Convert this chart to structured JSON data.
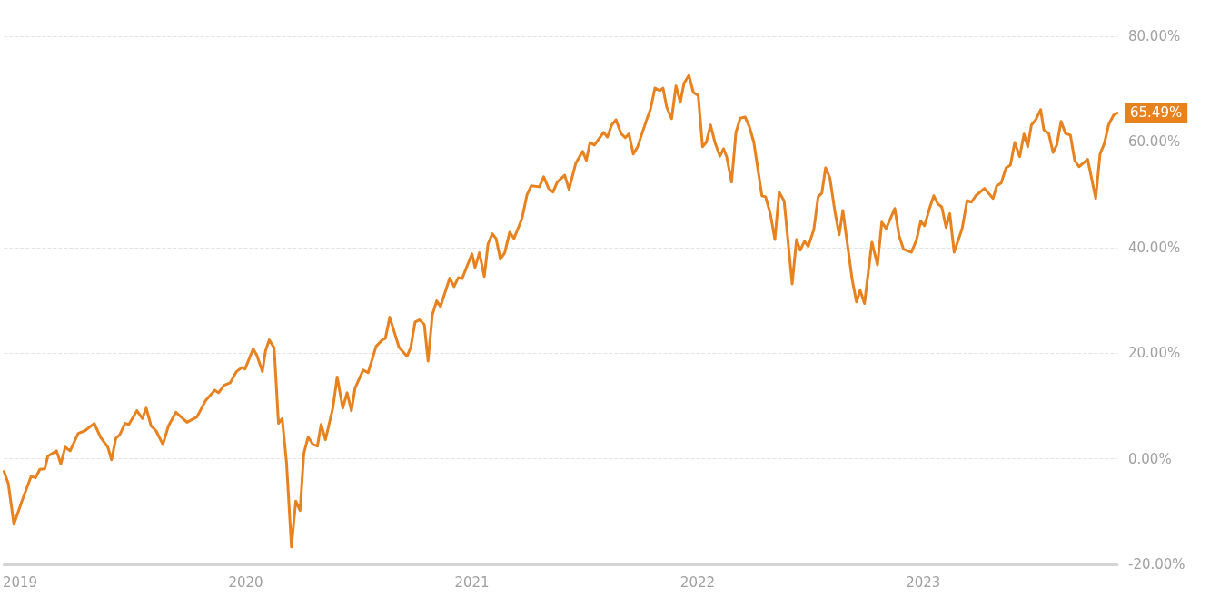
{
  "chart_data": {
    "type": "line",
    "xlim": [
      "2018-12-06",
      "2023-11-11"
    ],
    "ylim": [
      -20,
      80
    ],
    "xticks": [
      {
        "value": "2019-01-01",
        "label": "2019"
      },
      {
        "value": "2020-01-01",
        "label": "2020"
      },
      {
        "value": "2021-01-01",
        "label": "2021"
      },
      {
        "value": "2022-01-01",
        "label": "2022"
      },
      {
        "value": "2023-01-01",
        "label": "2023"
      }
    ],
    "yticks": [
      {
        "value": -20,
        "label": "-20.00%"
      },
      {
        "value": 0,
        "label": "0.00%"
      },
      {
        "value": 20,
        "label": "20.00%"
      },
      {
        "value": 40,
        "label": "40.00%"
      },
      {
        "value": 60,
        "label": "60.00%"
      },
      {
        "value": 80,
        "label": "80.00%"
      }
    ],
    "grid": "y",
    "marker": "none",
    "line_style": "solid",
    "annotations": [
      {
        "text": "65.49%",
        "x": "2023-11-11",
        "y": 65.49
      }
    ],
    "series": [
      {
        "color": "#e8821e",
        "x": [
          "2018-12-06",
          "2018-12-13",
          "2018-12-22",
          "2019-01-04",
          "2019-01-19",
          "2019-01-26",
          "2019-02-02",
          "2019-02-10",
          "2019-02-15",
          "2019-03-01",
          "2019-03-08",
          "2019-03-15",
          "2019-03-23",
          "2019-04-05",
          "2019-04-16",
          "2019-05-01",
          "2019-05-11",
          "2019-05-23",
          "2019-05-29",
          "2019-06-05",
          "2019-06-11",
          "2019-06-20",
          "2019-06-26",
          "2019-07-09",
          "2019-07-18",
          "2019-07-24",
          "2019-08-01",
          "2019-08-09",
          "2019-08-20",
          "2019-08-29",
          "2019-09-10",
          "2019-09-28",
          "2019-10-14",
          "2019-10-28",
          "2019-11-12",
          "2019-11-18",
          "2019-11-27",
          "2019-12-07",
          "2019-12-17",
          "2019-12-26",
          "2019-12-31",
          "2020-01-13",
          "2020-01-19",
          "2020-01-28",
          "2020-02-02",
          "2020-02-08",
          "2020-02-16",
          "2020-02-23",
          "2020-02-29",
          "2020-03-07",
          "2020-03-15",
          "2020-03-22",
          "2020-03-29",
          "2020-04-04",
          "2020-04-11",
          "2020-04-19",
          "2020-04-26",
          "2020-05-02",
          "2020-05-09",
          "2020-05-21",
          "2020-05-28",
          "2020-06-06",
          "2020-06-13",
          "2020-06-20",
          "2020-06-26",
          "2020-07-09",
          "2020-07-17",
          "2020-07-30",
          "2020-08-09",
          "2020-08-14",
          "2020-08-21",
          "2020-09-05",
          "2020-09-18",
          "2020-09-24",
          "2020-10-01",
          "2020-10-08",
          "2020-10-16",
          "2020-10-22",
          "2020-10-29",
          "2020-11-05",
          "2020-11-11",
          "2020-11-26",
          "2020-12-03",
          "2020-12-10",
          "2020-12-16",
          "2021-01-01",
          "2021-01-06",
          "2021-01-13",
          "2021-01-21",
          "2021-01-27",
          "2021-02-03",
          "2021-02-09",
          "2021-02-16",
          "2021-02-23",
          "2021-03-03",
          "2021-03-10",
          "2021-03-23",
          "2021-03-31",
          "2021-04-07",
          "2021-04-20",
          "2021-04-27",
          "2021-05-05",
          "2021-05-12",
          "2021-05-19",
          "2021-05-31",
          "2021-06-07",
          "2021-06-18",
          "2021-06-29",
          "2021-07-05",
          "2021-07-11",
          "2021-07-18",
          "2021-08-02",
          "2021-08-08",
          "2021-08-15",
          "2021-08-22",
          "2021-08-30",
          "2021-09-06",
          "2021-09-12",
          "2021-09-19",
          "2021-09-26",
          "2021-10-10",
          "2021-10-17",
          "2021-10-24",
          "2021-11-01",
          "2021-11-06",
          "2021-11-12",
          "2021-11-20",
          "2021-11-27",
          "2021-12-04",
          "2021-12-10",
          "2021-12-18",
          "2021-12-25",
          "2022-01-02",
          "2022-01-09",
          "2022-01-15",
          "2022-01-22",
          "2022-01-29",
          "2022-02-06",
          "2022-02-12",
          "2022-02-17",
          "2022-02-25",
          "2022-03-04",
          "2022-03-11",
          "2022-03-19",
          "2022-03-26",
          "2022-04-02",
          "2022-04-15",
          "2022-04-21",
          "2022-04-29",
          "2022-05-06",
          "2022-05-13",
          "2022-05-21",
          "2022-06-03",
          "2022-06-10",
          "2022-06-16",
          "2022-06-23",
          "2022-06-29",
          "2022-07-08",
          "2022-07-15",
          "2022-07-21",
          "2022-07-27",
          "2022-08-03",
          "2022-08-11",
          "2022-08-18",
          "2022-08-24",
          "2022-09-08",
          "2022-09-15",
          "2022-09-21",
          "2022-09-28",
          "2022-10-10",
          "2022-10-19",
          "2022-10-26",
          "2022-11-02",
          "2022-11-16",
          "2022-11-23",
          "2022-11-30",
          "2022-12-13",
          "2022-12-21",
          "2022-12-28",
          "2023-01-03",
          "2023-01-12",
          "2023-01-18",
          "2023-01-25",
          "2023-01-31",
          "2023-02-07",
          "2023-02-13",
          "2023-02-20",
          "2023-03-05",
          "2023-03-13",
          "2023-03-20",
          "2023-03-27",
          "2023-04-10",
          "2023-04-24",
          "2023-04-30",
          "2023-05-07",
          "2023-05-15",
          "2023-05-22",
          "2023-05-29",
          "2023-06-06",
          "2023-06-13",
          "2023-06-19",
          "2023-06-25",
          "2023-07-02",
          "2023-07-10",
          "2023-07-15",
          "2023-07-23",
          "2023-07-30",
          "2023-08-05",
          "2023-08-12",
          "2023-08-19",
          "2023-08-27",
          "2023-09-03",
          "2023-09-10",
          "2023-09-24",
          "2023-10-07",
          "2023-10-14",
          "2023-10-21",
          "2023-10-28",
          "2023-11-05",
          "2023-11-11"
        ],
        "values": [
          -2.4,
          -4.7,
          -12.4,
          -8,
          -3.3,
          -3.6,
          -2,
          -1.9,
          0.5,
          1.5,
          -1,
          2.2,
          1.5,
          4.8,
          5.3,
          6.7,
          4.1,
          2.2,
          -0.2,
          3.9,
          4.5,
          6.7,
          6.5,
          9.1,
          7.6,
          9.6,
          6.2,
          5.3,
          2.7,
          6.2,
          8.8,
          6.9,
          7.9,
          11,
          13,
          12.5,
          13.9,
          14.4,
          16.5,
          17.3,
          17,
          20.8,
          19.6,
          16.5,
          20.4,
          22.5,
          21,
          6.7,
          7.6,
          -0.7,
          -16.7,
          -8,
          -9.8,
          1,
          4.1,
          2.7,
          2.4,
          6.5,
          3.6,
          9.6,
          15.5,
          9.6,
          12.5,
          9.1,
          13.4,
          16.8,
          16.3,
          21.3,
          22.5,
          22.8,
          26.8,
          21.1,
          19.4,
          21.1,
          25.9,
          26.3,
          25.4,
          18.5,
          27.3,
          29.9,
          28.8,
          34.2,
          32.6,
          34.3,
          34.1,
          38.8,
          36.2,
          39,
          34.5,
          40.7,
          42.6,
          41.7,
          37.8,
          39,
          42.9,
          41.7,
          45.5,
          50,
          51.7,
          51.5,
          53.4,
          51.2,
          50.5,
          52.4,
          53.7,
          51,
          56,
          58.2,
          56.5,
          59.9,
          59.4,
          61.8,
          60.9,
          63.2,
          64.2,
          61.6,
          60.8,
          61.5,
          57.7,
          59.1,
          64,
          66.3,
          70.2,
          69.7,
          70.2,
          66.6,
          64.4,
          70.6,
          67.5,
          71.1,
          72.6,
          69.4,
          68.8,
          59.1,
          59.9,
          63.2,
          59.9,
          57.3,
          58.7,
          57.2,
          52.4,
          61.8,
          64.5,
          64.7,
          62.8,
          59.9,
          49.8,
          49.6,
          46.2,
          41.5,
          50.5,
          48.8,
          33.1,
          41.5,
          39.5,
          41.2,
          40.2,
          43.4,
          49.6,
          50.3,
          55.1,
          53.2,
          46.9,
          42.4,
          47,
          34,
          29.7,
          31.9,
          29.4,
          41,
          36.7,
          44.8,
          43.6,
          47.4,
          42.2,
          39.7,
          39.1,
          41.4,
          45,
          44.1,
          47.7,
          49.8,
          48.2,
          47.7,
          43.8,
          46.4,
          39.1,
          43.6,
          48.9,
          48.6,
          49.8,
          51.2,
          49.3,
          51.7,
          52.2,
          55.1,
          55.6,
          59.9,
          57.2,
          61.5,
          59.1,
          63.2,
          64.2,
          66.1,
          62.3,
          61.6,
          58,
          59.4,
          63.9,
          61.6,
          61.3,
          56.5,
          55.3,
          56.7,
          49.3,
          57.7,
          59.7,
          63.3,
          65.1,
          65.49
        ]
      }
    ]
  }
}
